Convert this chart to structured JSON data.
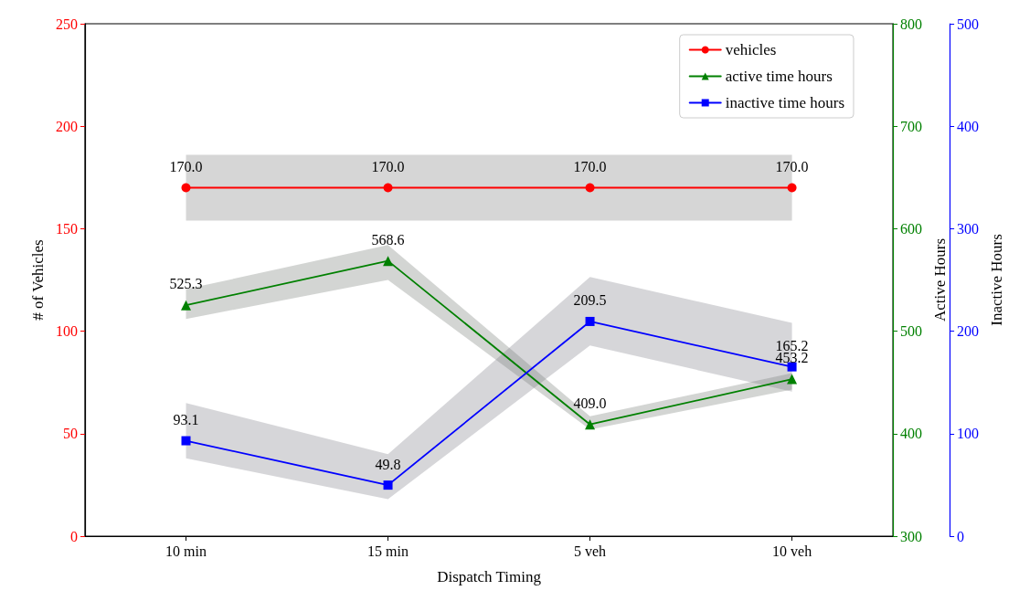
{
  "chart_data": {
    "type": "line",
    "xlabel": "Dispatch Timing",
    "ylabel": "# of Vehicles",
    "y2label": "Active Hours",
    "y3label": "Inactive Hours",
    "categories": [
      "10 min",
      "15 min",
      "5 veh",
      "10 veh"
    ],
    "series": [
      {
        "name": "vehicles",
        "color": "#ff0000",
        "marker": "circle",
        "values": [
          170.0,
          170.0,
          170.0,
          170.0
        ],
        "value_labels": [
          "170.0",
          "170.0",
          "170.0",
          "170.0"
        ],
        "lower": [
          154,
          154,
          154,
          154
        ],
        "upper": [
          186,
          186,
          186,
          186
        ]
      },
      {
        "name": "active time hours",
        "color": "#008000",
        "marker": "triangle",
        "axis": "y2",
        "values": [
          525.3,
          568.6,
          409.0,
          453.2
        ],
        "value_labels": [
          "525.3",
          "568.6",
          "409.0",
          "453.2"
        ],
        "lower": [
          512,
          550,
          404,
          443
        ],
        "upper": [
          541,
          584,
          417,
          459
        ]
      },
      {
        "name": "inactive time hours",
        "color": "#0000ff",
        "marker": "square",
        "axis": "y3",
        "values": [
          93.1,
          49.8,
          209.5,
          165.2
        ],
        "value_labels": [
          "93.1",
          "49.8",
          "209.5",
          "165.2"
        ],
        "lower": [
          76,
          36,
          186,
          141
        ],
        "upper": [
          130,
          80,
          253,
          208
        ]
      }
    ],
    "ylim": [
      0,
      250
    ],
    "yticks": [
      0,
      50,
      100,
      150,
      200,
      250
    ],
    "y2lim": [
      300,
      800
    ],
    "y2ticks": [
      300,
      400,
      500,
      600,
      700,
      800
    ],
    "y3lim": [
      0,
      500
    ],
    "y3ticks": [
      0,
      100,
      200,
      300,
      400,
      500
    ],
    "grid": false,
    "legend": "top right",
    "line_style": "solid"
  }
}
